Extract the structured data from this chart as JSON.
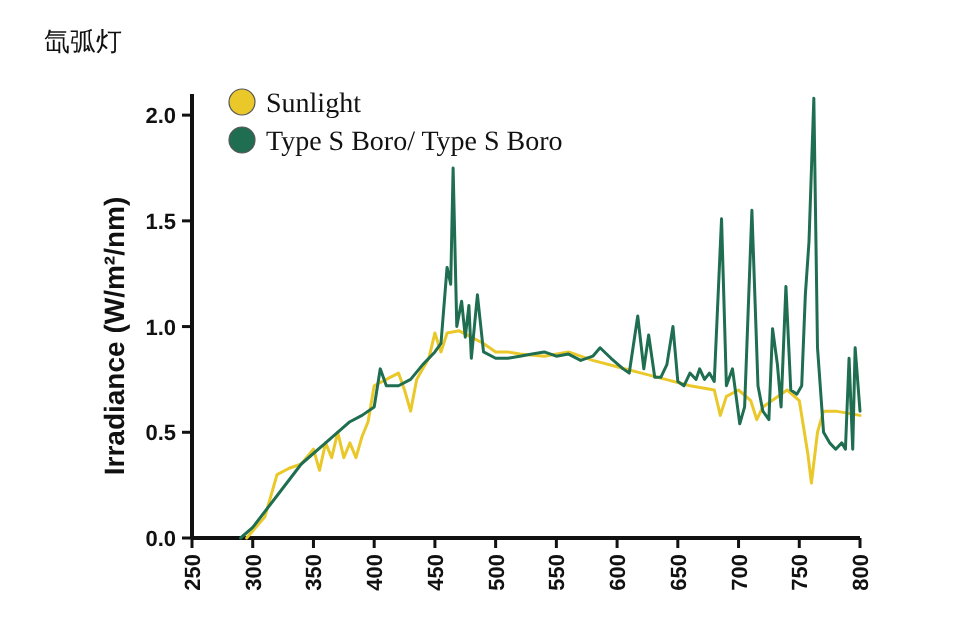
{
  "chart_data": {
    "type": "line",
    "title": "氙弧灯",
    "ylabel": "Irradiance (W/m²/nm)",
    "legend": "top left",
    "xlim": [
      250,
      800
    ],
    "ylim": [
      0,
      2.1
    ],
    "xticks": [
      250,
      300,
      350,
      400,
      450,
      500,
      550,
      600,
      650,
      700,
      750,
      800
    ],
    "yticks": [
      {
        "value": 0,
        "label": "0.0"
      },
      {
        "value": 0.5,
        "label": "0.5"
      },
      {
        "value": 1,
        "label": "1.0"
      },
      {
        "value": 1.5,
        "label": "1.5"
      },
      {
        "value": 2,
        "label": "2.0"
      }
    ],
    "series": [
      {
        "name": "Sunlight",
        "color": "#eac82a",
        "x": [
          295,
          310,
          320,
          330,
          340,
          350,
          355,
          360,
          365,
          370,
          375,
          380,
          385,
          390,
          395,
          400,
          410,
          420,
          425,
          430,
          435,
          440,
          445,
          450,
          455,
          460,
          470,
          480,
          490,
          500,
          510,
          520,
          540,
          560,
          580,
          600,
          620,
          640,
          660,
          680,
          685,
          690,
          700,
          710,
          715,
          720,
          740,
          750,
          757,
          760,
          765,
          770,
          780,
          800
        ],
        "values": [
          0,
          0.1,
          0.3,
          0.33,
          0.35,
          0.42,
          0.32,
          0.45,
          0.38,
          0.5,
          0.38,
          0.45,
          0.38,
          0.48,
          0.55,
          0.72,
          0.75,
          0.78,
          0.7,
          0.6,
          0.75,
          0.8,
          0.85,
          0.97,
          0.88,
          0.97,
          0.98,
          0.95,
          0.92,
          0.88,
          0.88,
          0.87,
          0.86,
          0.88,
          0.84,
          0.81,
          0.78,
          0.75,
          0.72,
          0.7,
          0.58,
          0.67,
          0.7,
          0.65,
          0.56,
          0.62,
          0.7,
          0.65,
          0.4,
          0.26,
          0.5,
          0.6,
          0.6,
          0.58
        ]
      },
      {
        "name": "Type S Boro/ Type S Boro",
        "color": "#1f6e52",
        "x": [
          290,
          300,
          320,
          340,
          360,
          380,
          390,
          400,
          405,
          410,
          420,
          430,
          440,
          450,
          455,
          460,
          463,
          465,
          468,
          472,
          475,
          478,
          480,
          485,
          490,
          500,
          510,
          520,
          530,
          540,
          550,
          560,
          570,
          580,
          586,
          595,
          605,
          610,
          617,
          622,
          626,
          631,
          636,
          641,
          646,
          650,
          655,
          660,
          665,
          668,
          672,
          676,
          680,
          686,
          690,
          695,
          701,
          705,
          711,
          716,
          720,
          725,
          728,
          732,
          735,
          739,
          743,
          748,
          752,
          755,
          758,
          762,
          765,
          770,
          775,
          780,
          785,
          788,
          791,
          794,
          796,
          800
        ],
        "values": [
          0,
          0.05,
          0.2,
          0.35,
          0.45,
          0.55,
          0.58,
          0.62,
          0.8,
          0.72,
          0.72,
          0.75,
          0.82,
          0.88,
          0.92,
          1.28,
          1.2,
          1.75,
          1.0,
          1.12,
          0.95,
          1.1,
          0.85,
          1.15,
          0.88,
          0.85,
          0.85,
          0.86,
          0.87,
          0.88,
          0.86,
          0.87,
          0.84,
          0.86,
          0.9,
          0.85,
          0.8,
          0.78,
          1.05,
          0.8,
          0.96,
          0.76,
          0.76,
          0.82,
          1.0,
          0.74,
          0.72,
          0.78,
          0.75,
          0.8,
          0.75,
          0.78,
          0.74,
          1.51,
          0.72,
          0.8,
          0.54,
          0.62,
          1.55,
          0.72,
          0.6,
          0.56,
          0.99,
          0.82,
          0.62,
          1.19,
          0.7,
          0.68,
          0.72,
          1.15,
          1.4,
          2.08,
          0.9,
          0.5,
          0.45,
          0.42,
          0.45,
          0.42,
          0.85,
          0.42,
          0.9,
          0.6
        ]
      }
    ]
  }
}
